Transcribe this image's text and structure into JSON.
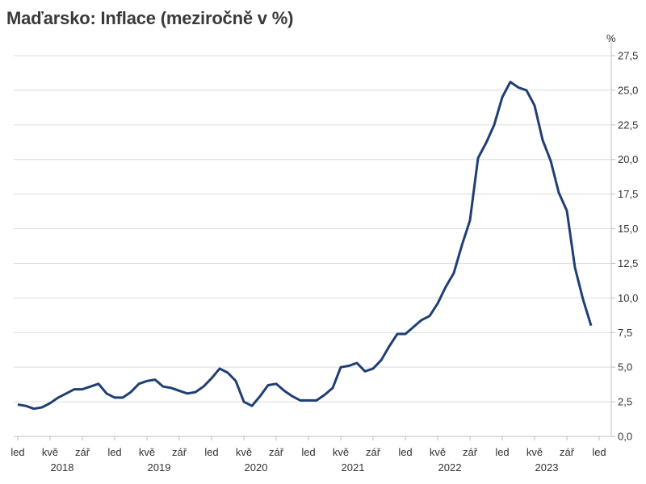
{
  "chart_data": {
    "type": "line",
    "title": "Maďarsko: Inflace (meziročně v %)",
    "ylabel": "%",
    "xlabel": "",
    "ylim": [
      0,
      27.5
    ],
    "yticks": [
      0,
      2.5,
      5,
      7.5,
      10,
      12.5,
      15,
      17.5,
      20,
      22.5,
      25,
      27.5
    ],
    "ytick_labels": [
      "0,0",
      "2,5",
      "5,0",
      "7,5",
      "10,0",
      "12,5",
      "15,0",
      "17,5",
      "20,0",
      "22,5",
      "25,0",
      "27,5"
    ],
    "y_axis_position": "right",
    "grid": true,
    "legend": "none",
    "line_color": "#1f3f74",
    "month_ticks": [
      {
        "label": "led",
        "year": 2018,
        "month": 1
      },
      {
        "label": "kvě",
        "year": 2018,
        "month": 5
      },
      {
        "label": "zář",
        "year": 2018,
        "month": 9
      },
      {
        "label": "led",
        "year": 2019,
        "month": 1
      },
      {
        "label": "kvě",
        "year": 2019,
        "month": 5
      },
      {
        "label": "zář",
        "year": 2019,
        "month": 9
      },
      {
        "label": "led",
        "year": 2020,
        "month": 1
      },
      {
        "label": "kvě",
        "year": 2020,
        "month": 5
      },
      {
        "label": "zář",
        "year": 2020,
        "month": 9
      },
      {
        "label": "led",
        "year": 2021,
        "month": 1
      },
      {
        "label": "kvě",
        "year": 2021,
        "month": 5
      },
      {
        "label": "zář",
        "year": 2021,
        "month": 9
      },
      {
        "label": "led",
        "year": 2022,
        "month": 1
      },
      {
        "label": "kvě",
        "year": 2022,
        "month": 5
      },
      {
        "label": "zář",
        "year": 2022,
        "month": 9
      },
      {
        "label": "led",
        "year": 2023,
        "month": 1
      },
      {
        "label": "kvě",
        "year": 2023,
        "month": 5
      },
      {
        "label": "zář",
        "year": 2023,
        "month": 9
      },
      {
        "label": "led",
        "year": 2024,
        "month": 1
      }
    ],
    "year_labels": [
      "2018",
      "2019",
      "2020",
      "2021",
      "2022",
      "2023"
    ],
    "series": [
      {
        "x": [
          "2018-01",
          "2018-02",
          "2018-03",
          "2018-04",
          "2018-05",
          "2018-06",
          "2018-07",
          "2018-08",
          "2018-09",
          "2018-10",
          "2018-11",
          "2018-12",
          "2019-01",
          "2019-02",
          "2019-03",
          "2019-04",
          "2019-05",
          "2019-06",
          "2019-07",
          "2019-08",
          "2019-09",
          "2019-10",
          "2019-11",
          "2019-12",
          "2020-01",
          "2020-02",
          "2020-03",
          "2020-04",
          "2020-05",
          "2020-06",
          "2020-07",
          "2020-08",
          "2020-09",
          "2020-10",
          "2020-11",
          "2020-12",
          "2021-01",
          "2021-02",
          "2021-03",
          "2021-04",
          "2021-05",
          "2021-06",
          "2021-07",
          "2021-08",
          "2021-09",
          "2021-10",
          "2021-11",
          "2021-12",
          "2022-01",
          "2022-02",
          "2022-03",
          "2022-04",
          "2022-05",
          "2022-06",
          "2022-07",
          "2022-08",
          "2022-09",
          "2022-10",
          "2022-11",
          "2022-12",
          "2023-01",
          "2023-02",
          "2023-03",
          "2023-04",
          "2023-05",
          "2023-06",
          "2023-07",
          "2023-08",
          "2023-09",
          "2023-10",
          "2023-11",
          "2023-12"
        ],
        "values": [
          2.3,
          2.2,
          2.0,
          2.1,
          2.4,
          2.8,
          3.1,
          3.4,
          3.4,
          3.6,
          3.8,
          3.1,
          2.8,
          2.8,
          3.2,
          3.8,
          4.0,
          4.1,
          3.6,
          3.5,
          3.3,
          3.1,
          3.2,
          3.6,
          4.2,
          4.9,
          4.6,
          4.0,
          2.5,
          2.2,
          2.9,
          3.7,
          3.8,
          3.3,
          2.9,
          2.6,
          2.6,
          2.6,
          3.0,
          3.5,
          5.0,
          5.1,
          5.3,
          4.7,
          4.9,
          5.5,
          6.5,
          7.4,
          7.4,
          7.9,
          8.4,
          8.7,
          9.6,
          10.8,
          11.8,
          13.8,
          15.6,
          20.1,
          21.2,
          22.5,
          24.5,
          25.6,
          25.2,
          25.0,
          23.9,
          21.4,
          19.9,
          17.6,
          16.3,
          12.2,
          9.9,
          8.0
        ]
      }
    ]
  }
}
